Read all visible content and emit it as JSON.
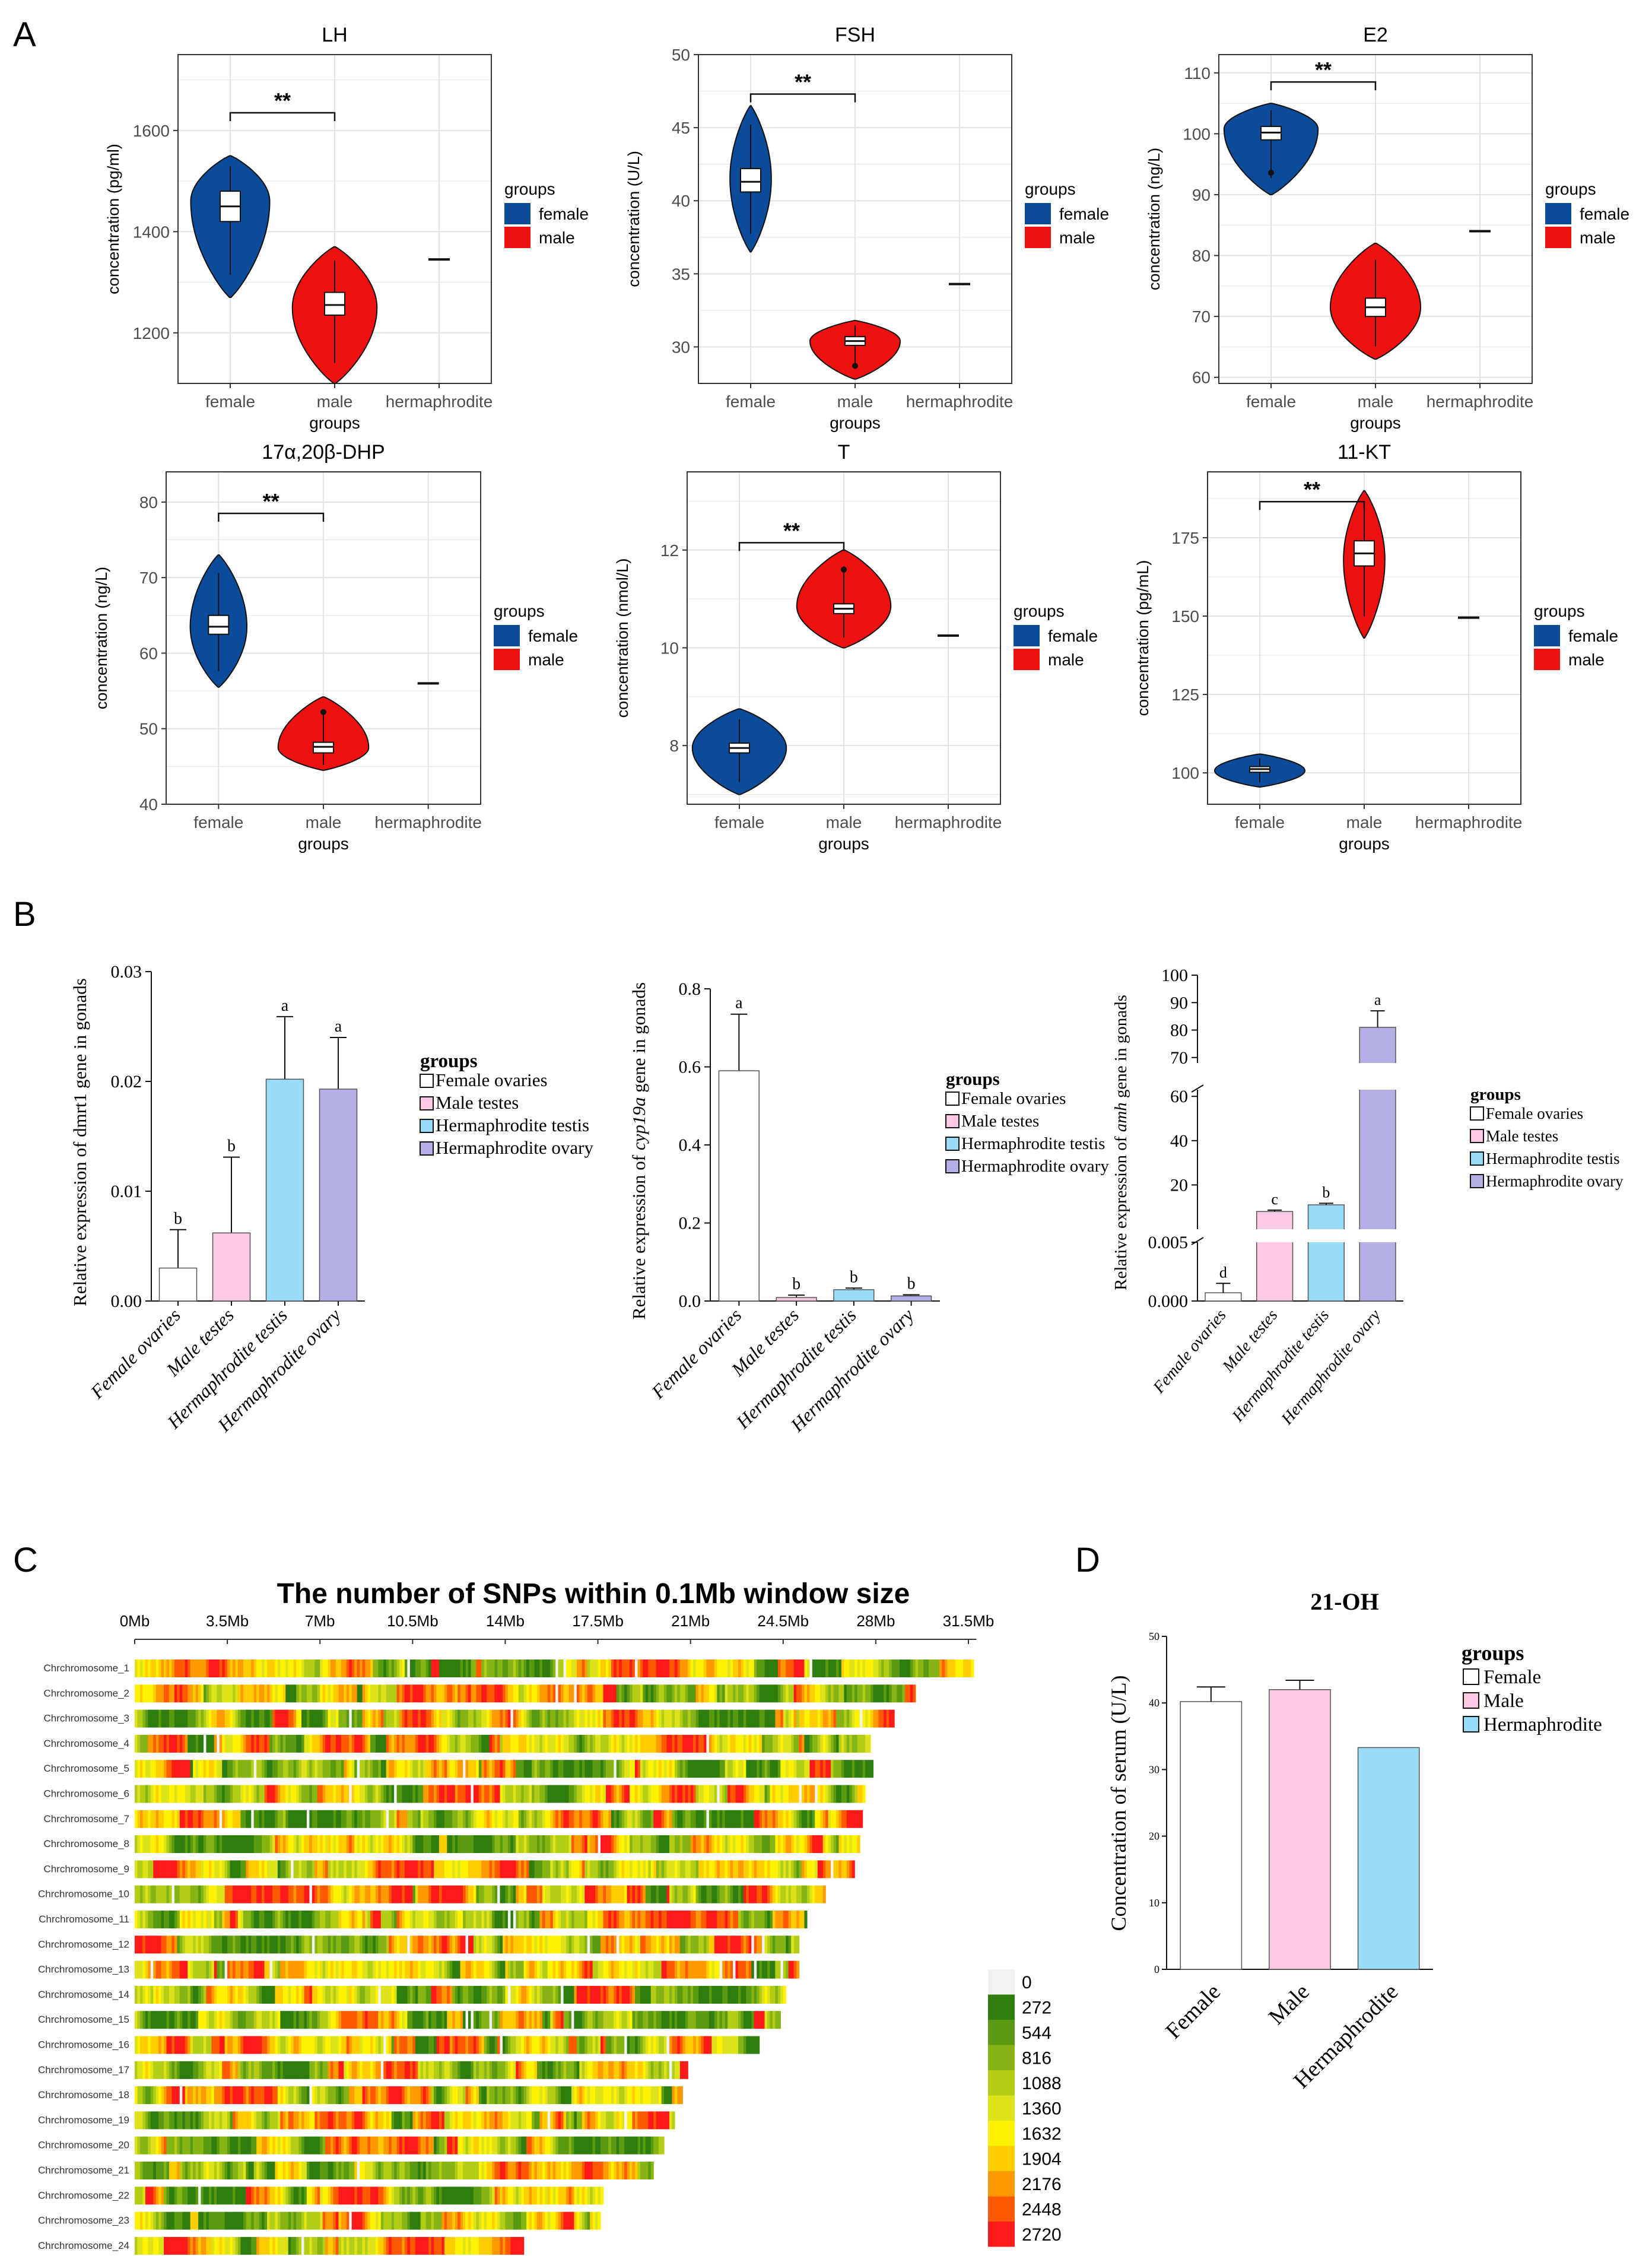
{
  "panel_labels": [
    "A",
    "B",
    "C",
    "D"
  ],
  "colors": {
    "female": "#0b4b99",
    "male": "#ee1111",
    "panel_bg": "#ffffff",
    "grid": "#e3e3e3",
    "border": "#333333",
    "bar_female": "#ffffff",
    "bar_male": "#fbc9e3",
    "bar_herm_testis": "#99dcf8",
    "bar_herm_ovary": "#b4b0e6"
  },
  "violin_common": {
    "xlabel": "groups",
    "categories": [
      "female",
      "male",
      "hermaphrodite"
    ],
    "legend_title": "groups",
    "legend_items": [
      "female",
      "male"
    ],
    "sig_label": "**"
  },
  "chart_data": [
    {
      "type": "violin",
      "title": "LH",
      "ylabel": "concentration (pg/ml)",
      "ylim": [
        1100,
        1750
      ],
      "yticks": [
        1200,
        1400,
        1600
      ],
      "show_xlabel": true,
      "groups": [
        {
          "name": "female",
          "min": 1270,
          "max": 1550,
          "q1": 1420,
          "median": 1450,
          "q3": 1480,
          "mode": 1460,
          "mode_width": 0.42,
          "outlier": null
        },
        {
          "name": "male",
          "min": 1100,
          "max": 1370,
          "q1": 1235,
          "median": 1255,
          "q3": 1280,
          "mode": 1250,
          "mode_width": 0.45,
          "outlier": null
        },
        {
          "name": "hermaphrodite",
          "value": 1345
        }
      ],
      "sig": {
        "from": "female",
        "to": "male",
        "y": 1635
      }
    },
    {
      "type": "violin",
      "title": "FSH",
      "ylabel": "concentration (U/L)",
      "ylim": [
        27.5,
        50
      ],
      "yticks": [
        30,
        35,
        40,
        45,
        50
      ],
      "show_xlabel": true,
      "groups": [
        {
          "name": "female",
          "min": 36.5,
          "max": 46.5,
          "q1": 40.6,
          "median": 41.3,
          "q3": 42.2,
          "mode": 41.5,
          "mode_width": 0.22,
          "outlier": null
        },
        {
          "name": "male",
          "min": 27.8,
          "max": 31.8,
          "q1": 30.1,
          "median": 30.4,
          "q3": 30.7,
          "mode": 30.4,
          "mode_width": 0.48,
          "outlier": 28.7
        },
        {
          "name": "hermaphrodite",
          "value": 34.3
        }
      ],
      "sig": {
        "from": "female",
        "to": "male",
        "y": 47.3
      }
    },
    {
      "type": "violin",
      "title": "E2",
      "ylabel": "concentration (ng/L)",
      "ylim": [
        59,
        113
      ],
      "yticks": [
        60,
        70,
        80,
        90,
        100,
        110
      ],
      "show_xlabel": true,
      "groups": [
        {
          "name": "female",
          "min": 90,
          "max": 105,
          "q1": 99,
          "median": 100.2,
          "q3": 101.2,
          "mode": 100.8,
          "mode_width": 0.5,
          "outlier": 93.6
        },
        {
          "name": "male",
          "min": 63,
          "max": 82,
          "q1": 70,
          "median": 71.5,
          "q3": 73,
          "mode": 71.5,
          "mode_width": 0.48,
          "outlier": null
        },
        {
          "name": "hermaphrodite",
          "value": 84
        }
      ],
      "sig": {
        "from": "female",
        "to": "male",
        "y": 108.5
      }
    },
    {
      "type": "violin",
      "title": "17α,20β-DHP",
      "ylabel": "concentration (ng/L)",
      "ylim": [
        40,
        84
      ],
      "yticks": [
        40,
        50,
        60,
        70,
        80
      ],
      "show_xlabel": true,
      "groups": [
        {
          "name": "female",
          "min": 55.5,
          "max": 73,
          "q1": 62.5,
          "median": 63.5,
          "q3": 65,
          "mode": 63.5,
          "mode_width": 0.3,
          "outlier": null
        },
        {
          "name": "male",
          "min": 44.5,
          "max": 54.2,
          "q1": 46.8,
          "median": 47.6,
          "q3": 48.2,
          "mode": 47.5,
          "mode_width": 0.48,
          "outlier": 52.2
        },
        {
          "name": "hermaphrodite",
          "value": 56
        }
      ],
      "sig": {
        "from": "female",
        "to": "male",
        "y": 78.5
      }
    },
    {
      "type": "violin",
      "title": "T",
      "ylabel": "concentration (nmol/L)",
      "ylim": [
        6.8,
        13.6
      ],
      "yticks": [
        8,
        10,
        12
      ],
      "show_xlabel": true,
      "groups": [
        {
          "name": "female",
          "min": 7.0,
          "max": 8.75,
          "q1": 7.85,
          "median": 7.95,
          "q3": 8.05,
          "mode": 7.95,
          "mode_width": 0.5,
          "outlier": null
        },
        {
          "name": "male",
          "min": 10.0,
          "max": 12.0,
          "q1": 10.7,
          "median": 10.8,
          "q3": 10.9,
          "mode": 10.85,
          "mode_width": 0.5,
          "outlier": 11.6
        },
        {
          "name": "hermaphrodite",
          "value": 10.25
        }
      ],
      "sig": {
        "from": "female",
        "to": "male",
        "y": 12.15
      }
    },
    {
      "type": "violin",
      "title": "11-KT",
      "ylabel": "concentration (pg/mL)",
      "ylim": [
        90,
        196
      ],
      "yticks": [
        100,
        125,
        150,
        175
      ],
      "show_xlabel": true,
      "groups": [
        {
          "name": "female",
          "min": 95.5,
          "max": 106,
          "q1": 100.2,
          "median": 101.2,
          "q3": 102,
          "mode": 100.7,
          "mode_width": 0.48,
          "outlier": null
        },
        {
          "name": "male",
          "min": 143,
          "max": 190,
          "q1": 166,
          "median": 170,
          "q3": 174,
          "mode": 168,
          "mode_width": 0.22,
          "outlier": null
        },
        {
          "name": "hermaphrodite",
          "value": 149.5
        }
      ],
      "sig": {
        "from": "female",
        "to": "male",
        "y": 186.5
      }
    },
    {
      "type": "bar",
      "title": "",
      "ylabel_pre": "Relative expression of ",
      "ylabel_gene": "dmrt1",
      "ylabel_post": " gene in gonads",
      "gene_italic": false,
      "categories": [
        "Female ovaries",
        "Male testes",
        "Hermaphrodite testis",
        "Hermaphrodite ovary"
      ],
      "values": [
        0.003,
        0.0062,
        0.0202,
        0.0193
      ],
      "errors": [
        0.0035,
        0.0069,
        0.0057,
        0.0047
      ],
      "letters": [
        "b",
        "b",
        "a",
        "a"
      ],
      "ylim": [
        0,
        0.03
      ],
      "yticks": [
        0.0,
        0.01,
        0.02,
        0.03
      ],
      "ytick_labels": [
        "0.00",
        "0.01",
        "0.02",
        "0.03"
      ],
      "legend_title": "groups",
      "legend_items": [
        "Female ovaries",
        "Male testes",
        "Hermaphrodite testis",
        "Hermaphrodite ovary"
      ]
    },
    {
      "type": "bar",
      "title": "",
      "ylabel_pre": "Relative expression of ",
      "ylabel_gene": "cyp19a",
      "ylabel_post": " gene in gonads",
      "gene_italic": true,
      "categories": [
        "Female ovaries",
        "Male testes",
        "Hermaphrodite testis",
        "Hermaphrodite ovary"
      ],
      "values": [
        0.59,
        0.009,
        0.029,
        0.013
      ],
      "errors": [
        0.145,
        0.006,
        0.004,
        0.003
      ],
      "letters": [
        "a",
        "b",
        "b",
        "b"
      ],
      "ylim": [
        0,
        0.8
      ],
      "yticks": [
        0.0,
        0.2,
        0.4,
        0.6,
        0.8
      ],
      "ytick_labels": [
        "0.0",
        "0.2",
        "0.4",
        "0.6",
        "0.8"
      ],
      "legend_title": "groups",
      "legend_items": [
        "Female ovaries",
        "Male testes",
        "Hermaphrodite testis",
        "Hermaphrodite ovary"
      ]
    },
    {
      "type": "bar",
      "title": "",
      "ylabel_pre": "Relative expression of ",
      "ylabel_gene": "amh",
      "ylabel_post": " gene in gonads",
      "gene_italic": true,
      "categories": [
        "Female ovaries",
        "Male testes",
        "Hermaphrodite testis",
        "Hermaphrodite ovary"
      ],
      "values": [
        0.0007,
        8,
        11,
        81
      ],
      "errors": [
        0.0008,
        0.6,
        0.7,
        6
      ],
      "letters": [
        "d",
        "c",
        "b",
        "a"
      ],
      "axis_break": {
        "lower": [
          0,
          0.005
        ],
        "middle": [
          0,
          63
        ],
        "upper": [
          68,
          100
        ]
      },
      "ytick_labels_lower": [
        "0.000",
        "0.005"
      ],
      "yticks_middle": [
        20,
        40,
        60
      ],
      "yticks_upper": [
        70,
        80,
        90,
        100
      ],
      "legend_title": "groups",
      "legend_items": [
        "Female ovaries",
        "Male testes",
        "Hermaphrodite testis",
        "Hermaphrodite ovary"
      ]
    },
    {
      "type": "heatmap",
      "title": "The number of SNPs within 0.1Mb window size",
      "x_ticks": [
        "0Mb",
        "3.5Mb",
        "7Mb",
        "10.5Mb",
        "14Mb",
        "17.5Mb",
        "21Mb",
        "24.5Mb",
        "28Mb",
        "31.5Mb"
      ],
      "x_max_mb": 31.5,
      "rows": [
        "Chrchromosome_1",
        "Chrchromosome_2",
        "Chrchromosome_3",
        "Chrchromosome_4",
        "Chrchromosome_5",
        "Chrchromosome_6",
        "Chrchromosome_7",
        "Chrchromosome_8",
        "Chrchromosome_9",
        "Chrchromosome_10",
        "Chrchromosome_11",
        "Chrchromosome_12",
        "Chrchromosome_13",
        "Chrchromosome_14",
        "Chrchromosome_15",
        "Chrchromosome_16",
        "Chrchromosome_17",
        "Chrchromosome_18",
        "Chrchromosome_19",
        "Chrchromosome_20",
        "Chrchromosome_21",
        "Chrchromosome_22",
        "Chrchromosome_23",
        "Chrchromosome_24"
      ],
      "lengths_mb": [
        31.7,
        29.5,
        28.7,
        27.8,
        27.9,
        27.6,
        27.5,
        27.4,
        27.2,
        26.1,
        25.4,
        25.1,
        25.1,
        24.6,
        24.4,
        23.6,
        20.9,
        20.7,
        20.4,
        20.0,
        19.6,
        17.7,
        17.6,
        14.7
      ],
      "legend_values": [
        0,
        272,
        544,
        816,
        1088,
        1360,
        1632,
        1904,
        2176,
        2448,
        2720
      ],
      "legend_colors": [
        "#f2f2f2",
        "#2e7d0e",
        "#5a9a10",
        "#86b414",
        "#b3cd16",
        "#dde21a",
        "#fff200",
        "#ffcc00",
        "#ff9900",
        "#ff5a00",
        "#ff1a1a"
      ]
    },
    {
      "type": "bar",
      "title": "21-OH",
      "ylabel": "Concentration of serum (U/L)",
      "categories": [
        "Female",
        "Male",
        "Hermaphrodite"
      ],
      "values": [
        40.2,
        42.0,
        33.3
      ],
      "errors": [
        2.2,
        1.4,
        0
      ],
      "ylim": [
        0,
        50
      ],
      "yticks": [
        0,
        10,
        20,
        30,
        40,
        50
      ],
      "legend_title": "groups",
      "legend_items": [
        "Female",
        "Male",
        "Hermaphrodite"
      ]
    }
  ]
}
